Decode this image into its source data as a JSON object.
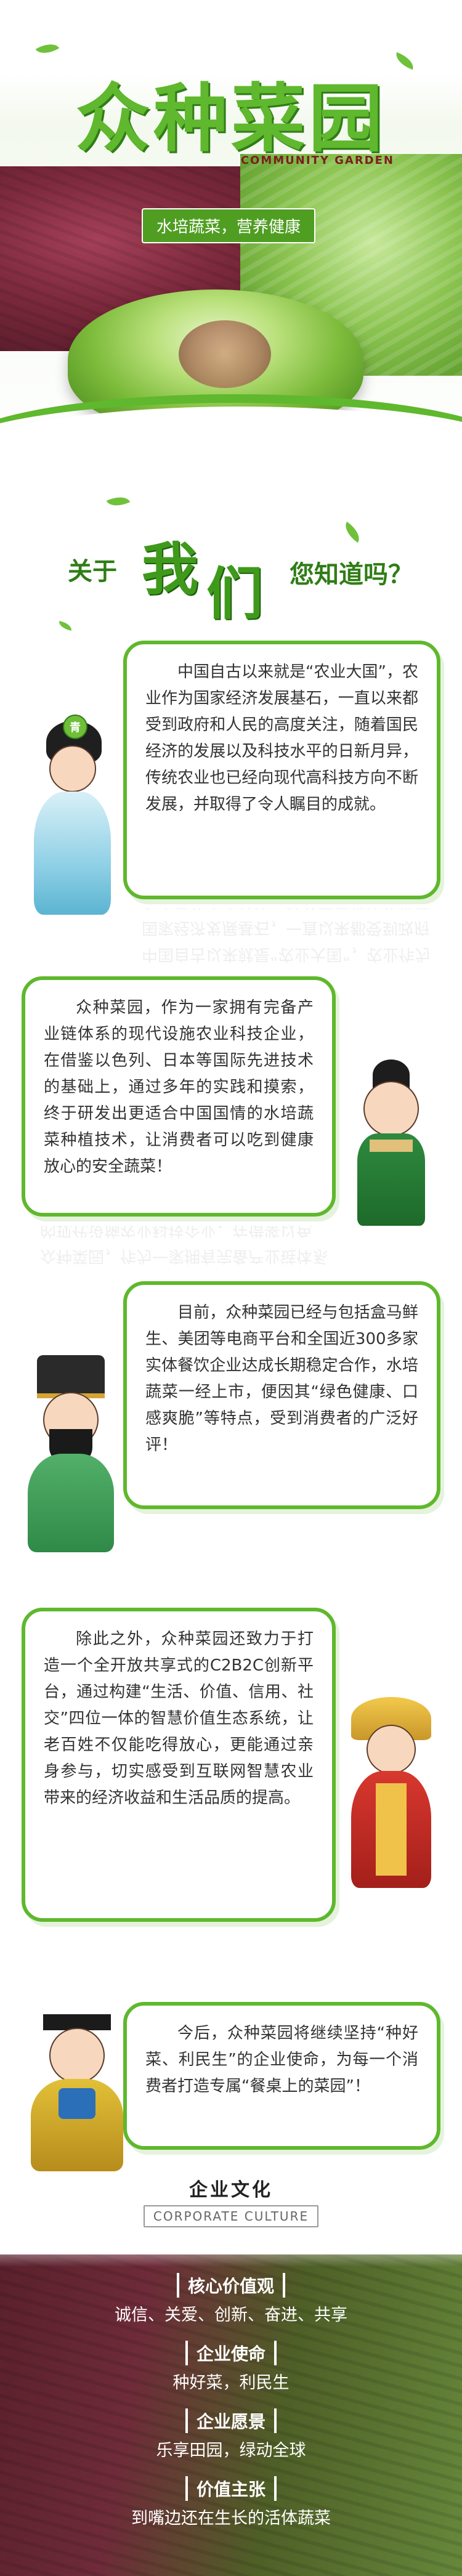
{
  "hero": {
    "title": "众种菜园",
    "subtitle": "COMMUNITY GARDEN",
    "tagline": "水培蔬菜，营养健康"
  },
  "about": {
    "prefix": "关于",
    "highlight_1": "我",
    "highlight_2": "们",
    "suffix": "您知道吗？"
  },
  "cards": [
    {
      "text": "中国自古以来就是“农业大国”，农业作为国家经济发展基石，一直以来都受到政府和人民的高度关注，随着国民经济的发展以及科技水平的日新月异，传统农业也已经向现代高科技方向不断发展，并取得了令人瞩目的成就。"
    },
    {
      "text": "众种菜园，作为一家拥有完备产业链体系的现代设施农业科技企业，在借鉴以色列、日本等国际先进技术的基础上，通过多年的实践和摸索，终于研发出更适合中国国情的水培蔬菜种植技术，让消费者可以吃到健康放心的安全蔬菜！"
    },
    {
      "text": "目前，众种菜园已经与包括盒马鲜生、美团等电商平台和全国近300多家实体餐饮企业达成长期稳定合作，水培蔬菜一经上市，便因其“绿色健康、口感爽脆”等特点，受到消费者的广泛好评！"
    },
    {
      "text": "除此之外，众种菜园还致力于打造一个全开放共享式的C2B2C创新平台，通过构建“生活、价值、信用、社交”四位一体的智慧价值生态系统，让老百姓不仅能吃得放心，更能通过亲身参与，切实感受到互联网智慧农业带来的经济收益和生活品质的提高。"
    },
    {
      "text": "今后，众种菜园将继续坚持“种好菜、利民生”的企业使命，为每一个消费者打造专属“餐桌上的菜园”！"
    }
  ],
  "character_badge": "青",
  "culture": {
    "title": "企业文化",
    "title_en": "CORPORATE CULTURE",
    "items": [
      {
        "label": "核心价值观",
        "value": "诚信、关爱、创新、奋进、共享"
      },
      {
        "label": "企业使命",
        "value": "种好菜，利民生"
      },
      {
        "label": "企业愿景",
        "value": "乐享田园，绿动全球"
      },
      {
        "label": "价值主张",
        "value": "到嘴边还在生长的活体蔬菜"
      }
    ]
  },
  "colors": {
    "primary_green": "#5fb82d",
    "dark_green": "#2f7d16",
    "text": "#333333"
  }
}
